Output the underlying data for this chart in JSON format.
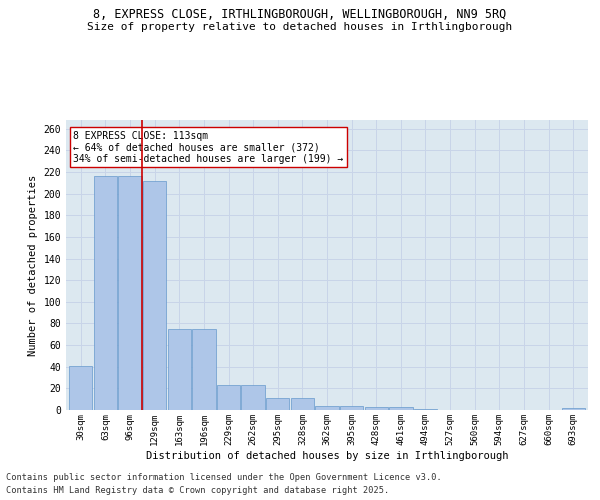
{
  "title_line1": "8, EXPRESS CLOSE, IRTHLINGBOROUGH, WELLINGBOROUGH, NN9 5RQ",
  "title_line2": "Size of property relative to detached houses in Irthlingborough",
  "xlabel": "Distribution of detached houses by size in Irthlingborough",
  "ylabel": "Number of detached properties",
  "categories": [
    "30sqm",
    "63sqm",
    "96sqm",
    "129sqm",
    "163sqm",
    "196sqm",
    "229sqm",
    "262sqm",
    "295sqm",
    "328sqm",
    "362sqm",
    "395sqm",
    "428sqm",
    "461sqm",
    "494sqm",
    "527sqm",
    "560sqm",
    "594sqm",
    "627sqm",
    "660sqm",
    "693sqm"
  ],
  "values": [
    41,
    216,
    216,
    212,
    75,
    75,
    23,
    23,
    11,
    11,
    4,
    4,
    3,
    3,
    1,
    0,
    0,
    0,
    0,
    0,
    2
  ],
  "bar_color": "#aec6e8",
  "bar_edge_color": "#6699cc",
  "property_line_color": "#cc0000",
  "property_line_x": 2.5,
  "annotation_text": "8 EXPRESS CLOSE: 113sqm\n← 64% of detached houses are smaller (372)\n34% of semi-detached houses are larger (199) →",
  "annotation_box_color": "#ffffff",
  "annotation_box_edge": "#cc0000",
  "grid_color": "#c8d4e8",
  "bg_color": "#dce8f0",
  "ylim_max": 268,
  "yticks": [
    0,
    20,
    40,
    60,
    80,
    100,
    120,
    140,
    160,
    180,
    200,
    220,
    240,
    260
  ],
  "footer_line1": "Contains HM Land Registry data © Crown copyright and database right 2025.",
  "footer_line2": "Contains public sector information licensed under the Open Government Licence v3.0."
}
